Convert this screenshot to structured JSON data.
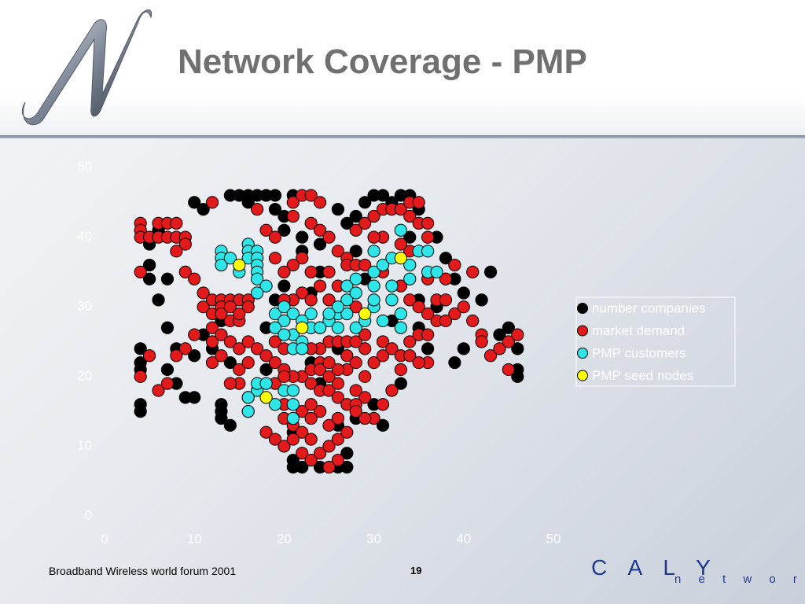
{
  "title": "Network Coverage - PMP",
  "footer": {
    "text": "Broadband Wireless world forum 2001",
    "page": "19",
    "brand": "C A L Y",
    "brand_sub": "n e t w o r k s"
  },
  "chart_data": {
    "type": "scatter",
    "xlim": [
      0,
      50
    ],
    "xticks": [
      0,
      10,
      20,
      30,
      40,
      50
    ],
    "ylim": [
      0,
      50
    ],
    "yticks": [
      0,
      10,
      20,
      30,
      40,
      50
    ],
    "grid": false,
    "legend": "right",
    "series": [
      {
        "name": "number companies",
        "color": "#000000",
        "x": [
          4,
          4,
          4,
          4,
          4,
          5,
          5,
          5,
          6,
          6,
          7,
          7,
          7,
          8,
          8,
          9,
          10,
          10,
          11,
          10,
          13,
          13,
          13,
          14,
          14,
          15,
          16,
          16,
          17,
          18,
          19,
          19,
          20,
          20,
          21,
          22,
          22,
          24,
          24,
          26,
          27,
          28,
          28,
          29,
          30,
          31,
          32,
          33,
          34,
          35,
          34,
          37,
          38,
          39,
          40,
          42,
          43,
          44,
          45,
          46,
          46,
          46,
          40,
          39,
          21,
          21,
          21,
          22,
          24,
          26,
          27,
          27,
          26,
          28,
          31,
          30,
          33,
          24,
          23,
          26,
          18,
          14,
          12,
          11,
          13,
          18,
          19,
          20,
          23,
          29,
          32,
          35,
          37,
          35,
          36
        ],
        "values": [
          24,
          22,
          21,
          16,
          15,
          36,
          34,
          39,
          41,
          31,
          34,
          27,
          21,
          24,
          19,
          17,
          17,
          45,
          44,
          23,
          16,
          15,
          14,
          13,
          46,
          46,
          46,
          45,
          46,
          46,
          46,
          44,
          43,
          41,
          46,
          40,
          38,
          39,
          35,
          44,
          42,
          43,
          38,
          45,
          46,
          46,
          45,
          46,
          46,
          44,
          40,
          40,
          37,
          34,
          32,
          31,
          35,
          26,
          27,
          24,
          21,
          20,
          24,
          22,
          12,
          8,
          7,
          7,
          7,
          7,
          7,
          9,
          13,
          14,
          13,
          16,
          19,
          19,
          22,
          24,
          21,
          22,
          24,
          26,
          28,
          27,
          31,
          33,
          32,
          34,
          28,
          31,
          30,
          27,
          24
        ]
      },
      {
        "name": "market demand",
        "color": "#e31a1c",
        "x": [
          4,
          4,
          4,
          4,
          5,
          6,
          6,
          7,
          7,
          8,
          8,
          9,
          9,
          8,
          9,
          10,
          11,
          11,
          12,
          12,
          13,
          13,
          13,
          14,
          14,
          15,
          15,
          16,
          16,
          12,
          12,
          13,
          14,
          15,
          16,
          10,
          9,
          8,
          5,
          4,
          6,
          7,
          12,
          13,
          15,
          16,
          17,
          18,
          19,
          20,
          19,
          20,
          22,
          23,
          23,
          24,
          24,
          25,
          26,
          27,
          26,
          27,
          27,
          28,
          29,
          29,
          30,
          31,
          31,
          32,
          33,
          34,
          34,
          35,
          36,
          37,
          38,
          39,
          40,
          41,
          42,
          42,
          43,
          44,
          45,
          45,
          46,
          36,
          35,
          33,
          32,
          31,
          30,
          29,
          29,
          28,
          12,
          17,
          18,
          19,
          21,
          21,
          22,
          23,
          23,
          24,
          24,
          25,
          26,
          27,
          22,
          23,
          21,
          20,
          19,
          25,
          26,
          24,
          22,
          21,
          20,
          23,
          25,
          28,
          27,
          28,
          29,
          28,
          29,
          30,
          31,
          32,
          33,
          34,
          34,
          35,
          35,
          36,
          36,
          34,
          33,
          31,
          30,
          31,
          33,
          34,
          35,
          36,
          37,
          38,
          38,
          39,
          41,
          36,
          24,
          25,
          26,
          27,
          28,
          29,
          24,
          23,
          16,
          16,
          15,
          14,
          19,
          20,
          20,
          21,
          22,
          23,
          22,
          23,
          24,
          25,
          26,
          26,
          25,
          27,
          28,
          28,
          18,
          19,
          20,
          21,
          22,
          24,
          23,
          23,
          25,
          26,
          21,
          20,
          24,
          25,
          26,
          25,
          14,
          15
        ],
        "values": [
          42,
          41,
          40,
          35,
          40,
          40,
          42,
          42,
          40,
          42,
          40,
          40,
          39,
          38,
          35,
          34,
          32,
          30,
          31,
          29,
          31,
          30,
          29,
          31,
          28,
          31,
          28,
          31,
          30,
          27,
          25,
          26,
          25,
          24,
          25,
          26,
          24,
          23,
          23,
          20,
          18,
          19,
          22,
          23,
          21,
          22,
          24,
          23,
          25,
          24,
          22,
          21,
          20,
          19,
          21,
          22,
          18,
          18,
          17,
          16,
          19,
          21,
          23,
          22,
          24,
          20,
          22,
          23,
          25,
          24,
          23,
          23,
          25,
          26,
          26,
          28,
          28,
          29,
          30,
          28,
          26,
          25,
          23,
          24,
          25,
          21,
          26,
          22,
          22,
          21,
          18,
          16,
          14,
          14,
          17,
          18,
          45,
          44,
          41,
          40,
          45,
          43,
          46,
          46,
          42,
          45,
          41,
          40,
          38,
          37,
          37,
          35,
          36,
          35,
          37,
          35,
          33,
          33,
          32,
          31,
          31,
          31,
          31,
          30,
          36,
          36,
          36,
          41,
          42,
          43,
          44,
          44,
          44,
          43,
          45,
          45,
          42,
          42,
          40,
          38,
          39,
          40,
          40,
          35,
          33,
          31,
          30,
          29,
          31,
          31,
          34,
          36,
          35,
          34,
          27,
          25,
          25,
          25,
          25,
          26,
          24,
          24,
          15,
          17,
          19,
          19,
          19,
          16,
          14,
          13,
          12,
          11,
          9,
          8,
          9,
          10,
          11,
          8,
          7,
          12,
          16,
          15,
          12,
          11,
          10,
          11,
          15,
          15,
          14,
          16,
          13,
          14,
          20,
          20,
          21,
          20,
          21,
          22,
          30,
          29
        ]
      },
      {
        "name": "PMP customers",
        "color": "#2ee6e8",
        "x": [
          13,
          13,
          13,
          14,
          16,
          16,
          16,
          17,
          17,
          17,
          17,
          17,
          18,
          17,
          15,
          19,
          20,
          21,
          20,
          21,
          22,
          21,
          22,
          23,
          23,
          25,
          24,
          26,
          26,
          27,
          27,
          28,
          28,
          27,
          28,
          29,
          30,
          31,
          30,
          30,
          30,
          30,
          31,
          32,
          33,
          34,
          32,
          34,
          35,
          36,
          36,
          37,
          33,
          33,
          32,
          26,
          25,
          17,
          17,
          18,
          16,
          16,
          19,
          20,
          21,
          21,
          21,
          19,
          20,
          22
        ],
        "values": [
          38,
          37,
          36,
          37,
          39,
          38,
          37,
          38,
          37,
          36,
          35,
          34,
          33,
          32,
          35,
          29,
          30,
          29,
          28,
          26,
          25,
          24,
          24,
          27,
          29,
          28,
          27,
          29,
          27,
          31,
          33,
          34,
          32,
          29,
          27,
          28,
          30,
          28,
          31,
          33,
          35,
          38,
          36,
          37,
          41,
          34,
          33,
          36,
          38,
          38,
          35,
          35,
          27,
          29,
          31,
          30,
          29,
          18,
          19,
          19,
          17,
          15,
          16,
          18,
          18,
          16,
          14,
          27,
          26,
          28
        ]
      },
      {
        "name": "PMP seed nodes",
        "color": "#ffff00",
        "x": [
          15,
          33,
          29,
          22,
          18
        ],
        "values": [
          36,
          37,
          29,
          27,
          17
        ]
      }
    ]
  }
}
